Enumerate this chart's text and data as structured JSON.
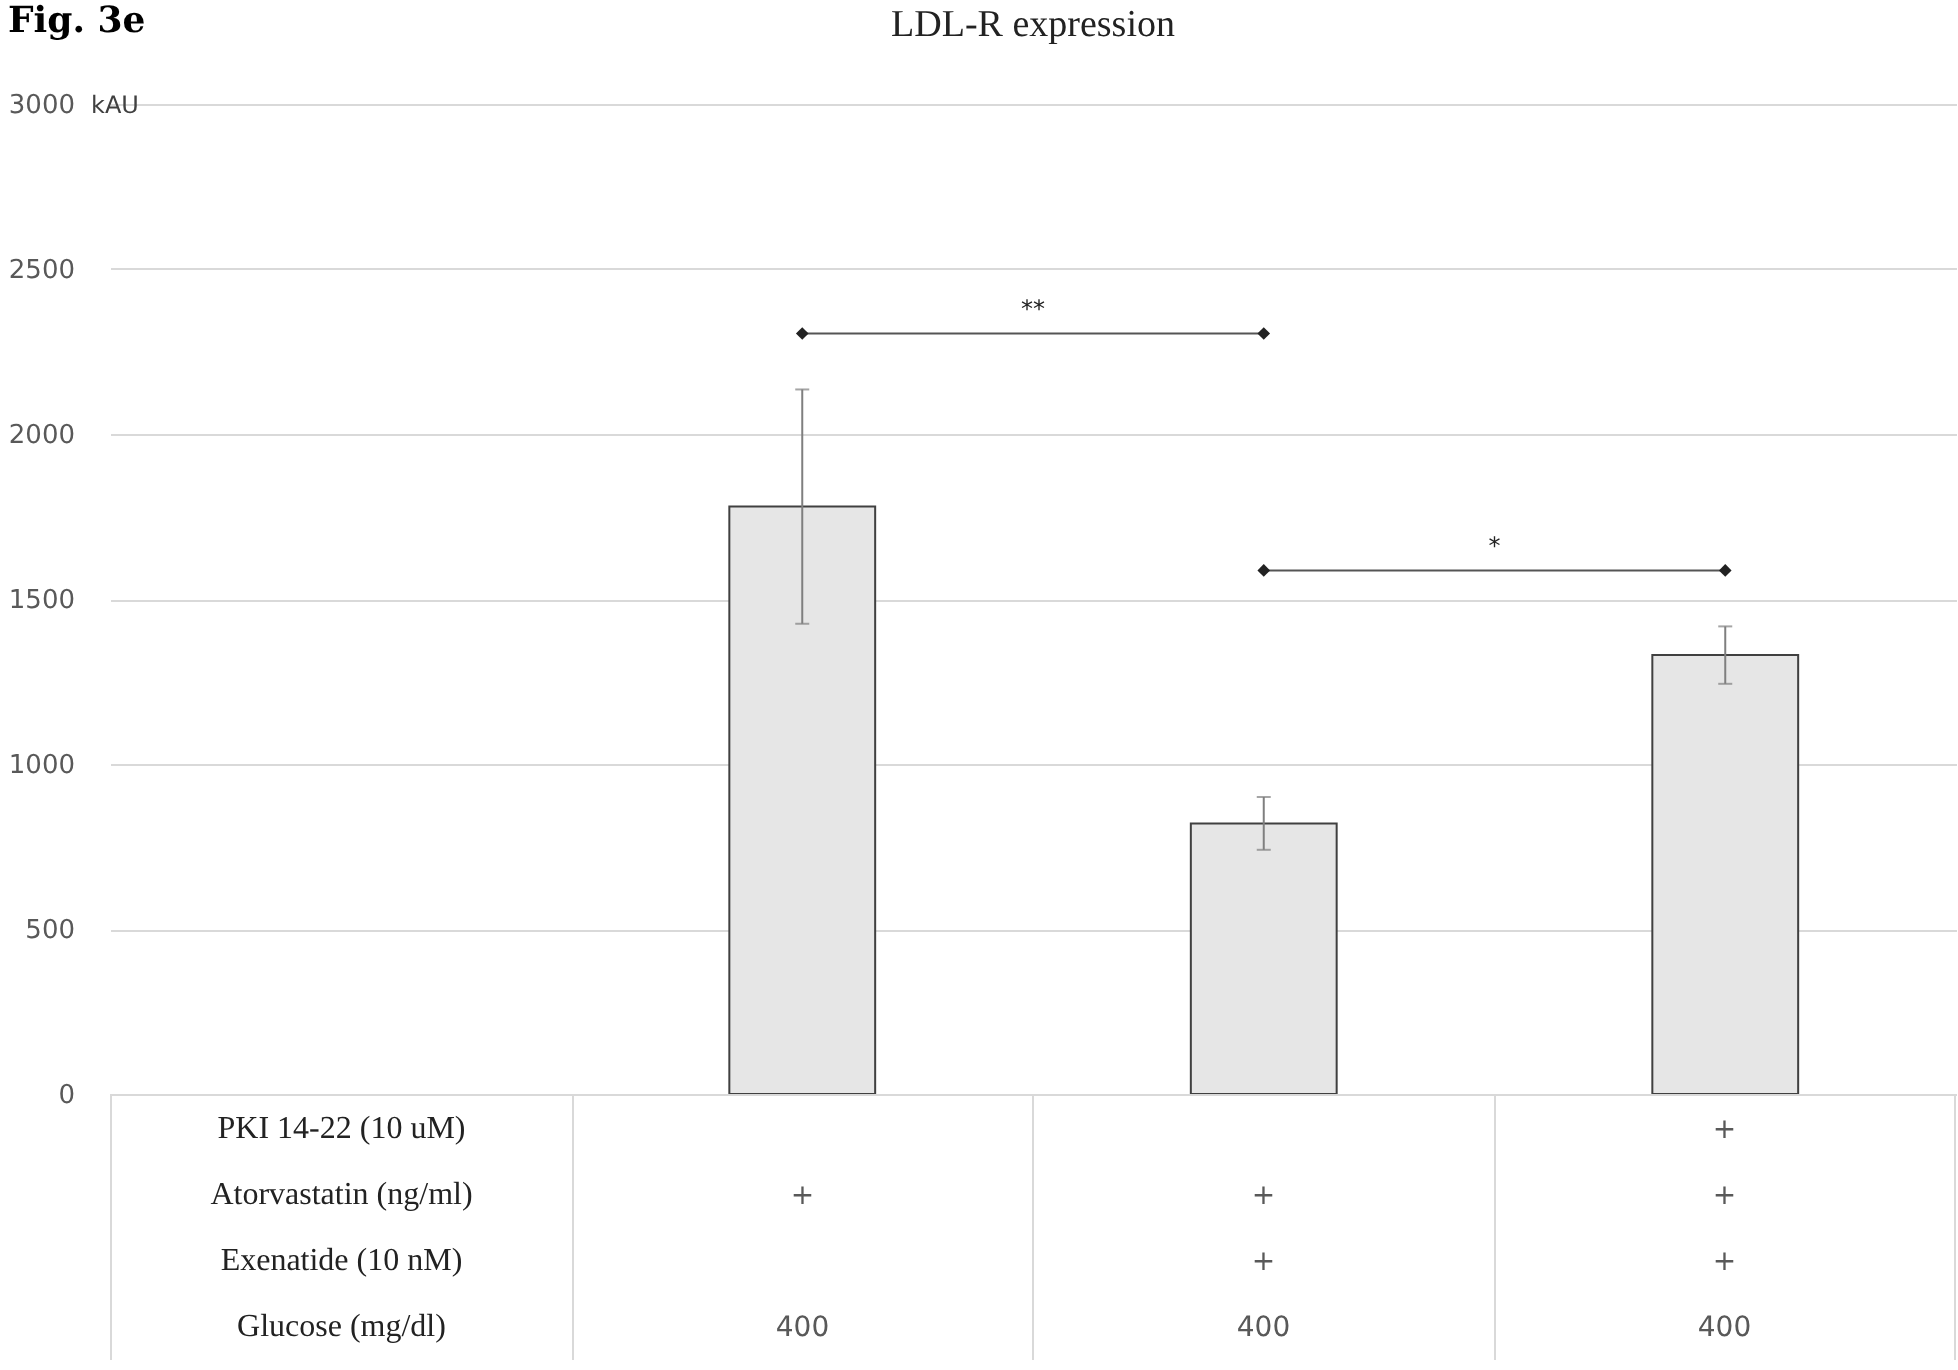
{
  "chart_data": {
    "type": "bar",
    "title": "LDL-R expression",
    "ylabel": "kAU",
    "categories": [
      null,
      null,
      null,
      null
    ],
    "values": [
      null,
      1780,
      820,
      1330
    ],
    "errors": [
      null,
      355,
      80,
      87
    ],
    "color": "#e6e6e6",
    "ylim": [
      0,
      3000
    ],
    "yticks": [
      0,
      500,
      1000,
      1500,
      2000,
      2500,
      3000
    ],
    "grid": "y",
    "annotations": [
      "Fig. 3e",
      "**",
      "*",
      "PKI 14-22 (10 uM)",
      null,
      null,
      "+",
      "Atorvastatin (ng/ml)",
      "+",
      "+",
      "+",
      "Exenatide (10 nM)",
      null,
      "+",
      "+",
      "Glucose (mg/dl)",
      "400",
      "400",
      "400"
    ]
  }
}
